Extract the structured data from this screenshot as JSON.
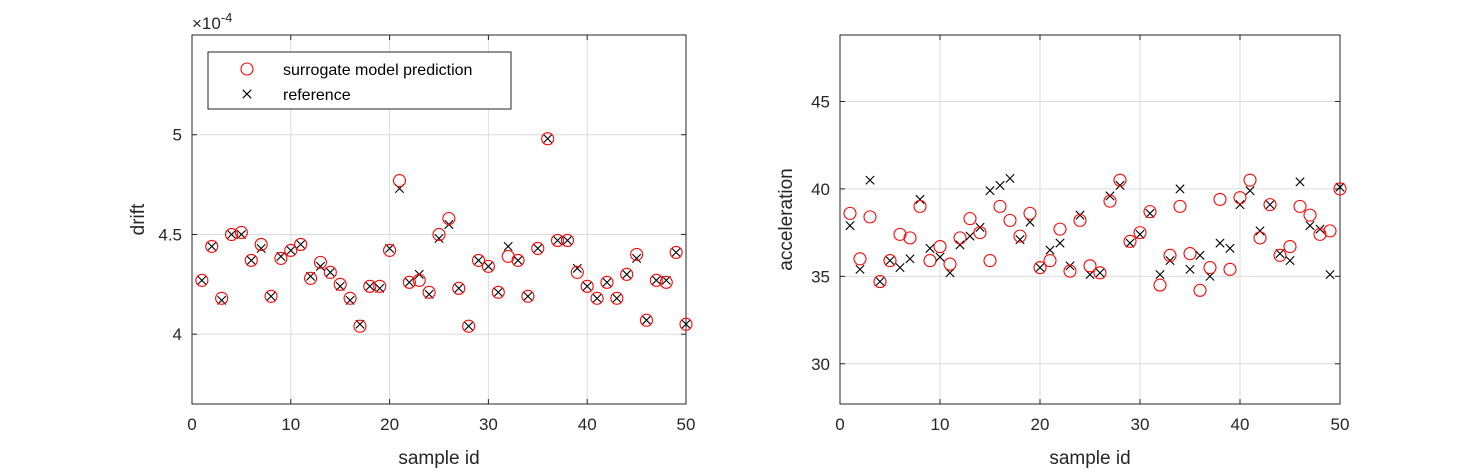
{
  "chart_data": [
    {
      "type": "scatter",
      "xlabel": "sample id",
      "ylabel": "drift",
      "exponent_label": "×10",
      "exponent_value": "-4",
      "xlim": [
        0,
        50
      ],
      "ylim": [
        3.65,
        5.5
      ],
      "xticks": [
        0,
        10,
        20,
        30,
        40,
        50
      ],
      "yticks": [
        4,
        4.5,
        5
      ],
      "grid": true,
      "legend_position": "top-left",
      "colors": {
        "prediction": "#ff0000",
        "reference": "#000000"
      },
      "x": [
        1,
        2,
        3,
        4,
        5,
        6,
        7,
        8,
        9,
        10,
        11,
        12,
        13,
        14,
        15,
        16,
        17,
        18,
        19,
        20,
        21,
        22,
        23,
        24,
        25,
        26,
        27,
        28,
        29,
        30,
        31,
        32,
        33,
        34,
        35,
        36,
        37,
        38,
        39,
        40,
        41,
        42,
        43,
        44,
        45,
        46,
        47,
        48,
        49,
        50
      ],
      "series": [
        {
          "name": "surrogate model prediction",
          "marker": "circle",
          "values": [
            4.27,
            4.44,
            4.18,
            4.5,
            4.51,
            4.37,
            4.45,
            4.19,
            4.38,
            4.42,
            4.45,
            4.28,
            4.36,
            4.31,
            4.25,
            4.18,
            4.04,
            4.24,
            4.24,
            4.42,
            4.77,
            4.26,
            4.27,
            4.21,
            4.5,
            4.58,
            4.23,
            4.04,
            4.37,
            4.34,
            4.21,
            4.39,
            4.37,
            4.19,
            4.43,
            4.98,
            4.47,
            4.47,
            4.31,
            4.24,
            4.18,
            4.26,
            4.18,
            4.3,
            4.4,
            4.07,
            4.27,
            4.26,
            4.41,
            4.05
          ]
        },
        {
          "name": "reference",
          "marker": "x",
          "values": [
            4.27,
            4.44,
            4.17,
            4.5,
            4.5,
            4.37,
            4.43,
            4.19,
            4.39,
            4.42,
            4.45,
            4.29,
            4.34,
            4.31,
            4.24,
            4.17,
            4.05,
            4.24,
            4.23,
            4.43,
            4.73,
            4.26,
            4.3,
            4.2,
            4.48,
            4.55,
            4.23,
            4.04,
            4.37,
            4.34,
            4.21,
            4.44,
            4.37,
            4.19,
            4.43,
            4.98,
            4.47,
            4.47,
            4.33,
            4.24,
            4.18,
            4.26,
            4.18,
            4.3,
            4.38,
            4.07,
            4.27,
            4.27,
            4.41,
            4.05
          ]
        }
      ]
    },
    {
      "type": "scatter",
      "xlabel": "sample id",
      "ylabel": "acceleration",
      "xlim": [
        0,
        50
      ],
      "ylim": [
        27.7,
        48.8
      ],
      "xticks": [
        0,
        10,
        20,
        30,
        40,
        50
      ],
      "yticks": [
        30,
        35,
        40,
        45
      ],
      "grid": true,
      "colors": {
        "prediction": "#ff0000",
        "reference": "#000000"
      },
      "x": [
        1,
        2,
        3,
        4,
        5,
        6,
        7,
        8,
        9,
        10,
        11,
        12,
        13,
        14,
        15,
        16,
        17,
        18,
        19,
        20,
        21,
        22,
        23,
        24,
        25,
        26,
        27,
        28,
        29,
        30,
        31,
        32,
        33,
        34,
        35,
        36,
        37,
        38,
        39,
        40,
        41,
        42,
        43,
        44,
        45,
        46,
        47,
        48,
        49,
        50
      ],
      "series": [
        {
          "name": "surrogate model prediction",
          "marker": "circle",
          "values": [
            38.6,
            36.0,
            38.4,
            34.7,
            35.9,
            37.4,
            37.2,
            39.0,
            35.9,
            36.7,
            35.7,
            37.2,
            38.3,
            37.5,
            35.9,
            39.0,
            38.2,
            37.3,
            38.6,
            35.5,
            35.9,
            37.7,
            35.3,
            38.2,
            35.6,
            35.2,
            39.3,
            40.5,
            37.0,
            37.5,
            38.7,
            34.5,
            36.2,
            39.0,
            36.3,
            34.2,
            35.5,
            39.4,
            35.4,
            39.5,
            40.5,
            37.2,
            39.1,
            36.2,
            36.7,
            39.0,
            38.5,
            37.4,
            37.6,
            40.0
          ]
        },
        {
          "name": "reference",
          "marker": "x",
          "values": [
            37.9,
            35.4,
            40.5,
            34.7,
            35.9,
            35.5,
            36.0,
            39.4,
            36.6,
            36.1,
            35.2,
            36.8,
            37.3,
            37.8,
            39.9,
            40.2,
            40.6,
            37.1,
            38.1,
            35.5,
            36.5,
            36.9,
            35.6,
            38.5,
            35.1,
            35.2,
            39.6,
            40.2,
            36.9,
            37.4,
            38.6,
            35.1,
            35.9,
            40.0,
            35.4,
            36.2,
            35.0,
            36.9,
            36.6,
            39.1,
            39.9,
            37.6,
            39.1,
            36.3,
            35.9,
            40.4,
            37.9,
            37.7,
            35.1,
            40.1
          ]
        }
      ]
    }
  ]
}
